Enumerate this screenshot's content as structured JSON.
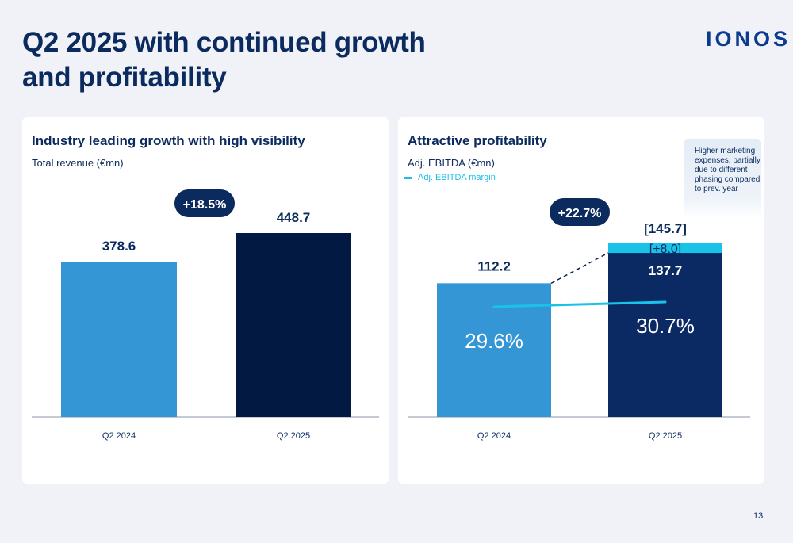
{
  "header": {
    "title_line1": "Q2 2025 with continued growth",
    "title_line2": "and profitability",
    "logo": "IONOS"
  },
  "left_card": {
    "title": "Industry leading growth with high visibility",
    "subtitle": "Total revenue (€mn)"
  },
  "right_card": {
    "title": "Attractive profitability",
    "subtitle": "Adj. EBITDA (€mn)",
    "legend_margin": "Adj. EBITDA margin",
    "callout": "Higher marketing expenses, partially due to different phasing compared to prev. year"
  },
  "page_number": "13",
  "colors": {
    "light_blue": "#3596d6",
    "dark_navy": "#021a42",
    "navy": "#0b2a64",
    "cyan": "#19c3e8",
    "badge": "#0b2a5e"
  },
  "chart_data": [
    {
      "type": "bar",
      "categories": [
        "Q2 2024",
        "Q2 2025"
      ],
      "values": [
        378.6,
        448.7
      ],
      "value_labels": [
        "378.6",
        "448.7"
      ],
      "growth_badge": "+18.5%",
      "ylim": [
        0,
        448.7
      ]
    },
    {
      "type": "bar",
      "categories": [
        "Q2 2024",
        "Q2 2025"
      ],
      "series": [
        {
          "name": "Adj. EBITDA",
          "values": [
            112.2,
            137.7
          ]
        },
        {
          "values": [
            0,
            8.0
          ]
        }
      ],
      "value_labels": [
        "112.2",
        "137.7"
      ],
      "addon_label": "[+8.0]",
      "total_label": "[145.7]",
      "growth_badge": "+22.7%",
      "margin_line": {
        "name": "Adj. EBITDA margin",
        "values": [
          29.6,
          30.7
        ],
        "labels": [
          "29.6%",
          "30.7%"
        ]
      },
      "ylim": [
        0,
        145.7
      ]
    }
  ]
}
